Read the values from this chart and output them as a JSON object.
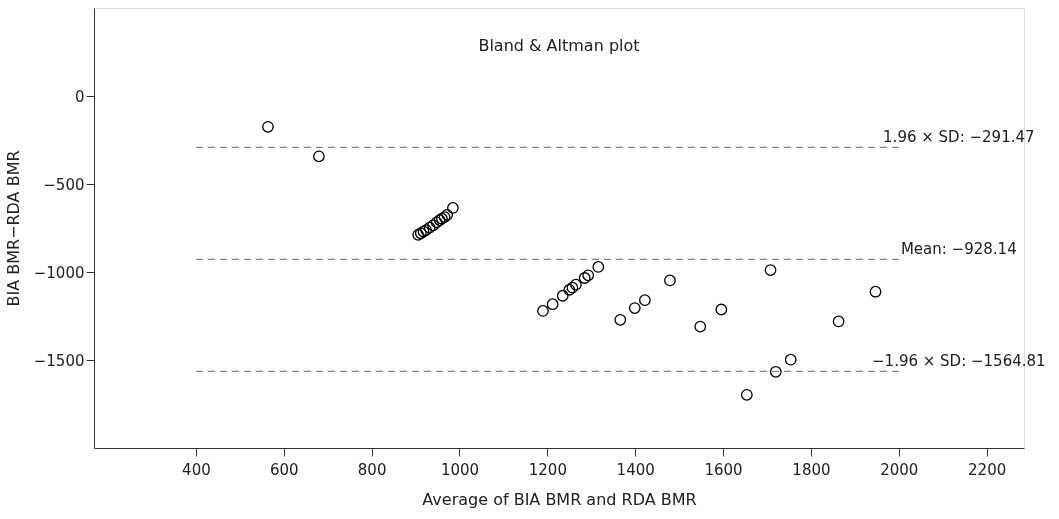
{
  "chart_data": {
    "type": "scatter",
    "title": "Bland & Altman plot",
    "xlabel": "Average of BIA BMR and RDA BMR",
    "ylabel": "BIA BMR−RDA BMR",
    "x": [
      564,
      680,
      906,
      912,
      918,
      924,
      932,
      940,
      948,
      955,
      960,
      966,
      972,
      985,
      1190,
      1212,
      1235,
      1250,
      1257,
      1265,
      1285,
      1293,
      1316,
      1366,
      1399,
      1422,
      1479,
      1548,
      1596,
      1654,
      1708,
      1720,
      1754,
      1863,
      1947
    ],
    "series": [
      {
        "color": "#000000",
        "values": [
          -175,
          -343,
          -789,
          -780,
          -770,
          -762,
          -748,
          -735,
          -718,
          -705,
          -697,
          -688,
          -675,
          -636,
          -1221,
          -1183,
          -1135,
          -1101,
          -1089,
          -1072,
          -1034,
          -1019,
          -971,
          -1272,
          -1205,
          -1160,
          -1048,
          -1310,
          -1213,
          -1698,
          -989,
          -1567,
          -1498,
          -1281,
          -1112
        ]
      }
    ],
    "xlim": [
      168,
      2285
    ],
    "ylim": [
      -2000,
      500
    ],
    "xticks": [
      400,
      600,
      800,
      1000,
      1200,
      1400,
      1600,
      1800,
      2000,
      2200
    ],
    "yticks": [
      0,
      -500,
      -1000,
      -1500
    ],
    "ref_lines": [
      {
        "axis": "y",
        "value": -291.47,
        "label": "1.96 × SD: −291.47",
        "color": "#888888",
        "line_style": "dashed"
      },
      {
        "axis": "y",
        "value": -928.14,
        "label": "Mean: −928.14",
        "color": "#888888",
        "line_style": "dashed"
      },
      {
        "axis": "y",
        "value": -1564.81,
        "label": "−1.96 × SD: −1564.81",
        "color": "#888888",
        "line_style": "dashed"
      }
    ],
    "marker": "circle",
    "grid": false
  }
}
